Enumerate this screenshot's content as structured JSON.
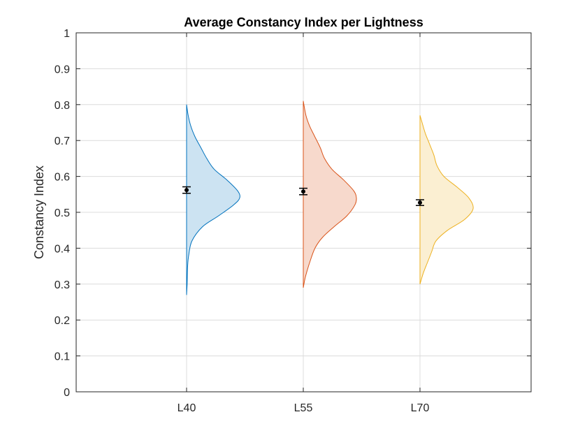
{
  "chart_data": {
    "type": "violin",
    "title": "Average Constancy Index per Lightness",
    "xlabel": "",
    "ylabel": "Constancy Index",
    "ylim": [
      0,
      1
    ],
    "yticks": [
      0,
      0.1,
      0.2,
      0.3,
      0.4,
      0.5,
      0.6,
      0.7,
      0.8,
      0.9,
      1
    ],
    "ytick_labels": [
      "0",
      "0.1",
      "0.2",
      "0.3",
      "0.4",
      "0.5",
      "0.6",
      "0.7",
      "0.8",
      "0.9",
      "1"
    ],
    "grid": true,
    "categories": [
      "L40",
      "L55",
      "L70"
    ],
    "series": [
      {
        "category": "L40",
        "color": "#0072BD",
        "fill": "#CCE3F2",
        "mean": 0.562,
        "error": 0.009,
        "range": [
          0.27,
          0.8
        ],
        "density_profile": [
          [
            0.27,
            0.0
          ],
          [
            0.3,
            0.01
          ],
          [
            0.35,
            0.02
          ],
          [
            0.38,
            0.04
          ],
          [
            0.42,
            0.1
          ],
          [
            0.46,
            0.3
          ],
          [
            0.49,
            0.6
          ],
          [
            0.52,
            0.88
          ],
          [
            0.54,
            1.0
          ],
          [
            0.56,
            0.96
          ],
          [
            0.59,
            0.76
          ],
          [
            0.62,
            0.52
          ],
          [
            0.65,
            0.38
          ],
          [
            0.68,
            0.27
          ],
          [
            0.71,
            0.16
          ],
          [
            0.74,
            0.08
          ],
          [
            0.77,
            0.03
          ],
          [
            0.8,
            0.0
          ]
        ]
      },
      {
        "category": "L55",
        "color": "#D95319",
        "fill": "#F7D9CC",
        "mean": 0.558,
        "error": 0.009,
        "range": [
          0.29,
          0.81
        ],
        "density_profile": [
          [
            0.29,
            0.0
          ],
          [
            0.32,
            0.04
          ],
          [
            0.36,
            0.12
          ],
          [
            0.4,
            0.22
          ],
          [
            0.43,
            0.36
          ],
          [
            0.46,
            0.58
          ],
          [
            0.49,
            0.82
          ],
          [
            0.52,
            0.97
          ],
          [
            0.54,
            1.0
          ],
          [
            0.56,
            0.95
          ],
          [
            0.59,
            0.76
          ],
          [
            0.62,
            0.54
          ],
          [
            0.65,
            0.4
          ],
          [
            0.68,
            0.32
          ],
          [
            0.71,
            0.22
          ],
          [
            0.74,
            0.12
          ],
          [
            0.77,
            0.05
          ],
          [
            0.81,
            0.0
          ]
        ]
      },
      {
        "category": "L70",
        "color": "#EDB120",
        "fill": "#FBEFD2",
        "mean": 0.527,
        "error": 0.008,
        "range": [
          0.3,
          0.77
        ],
        "density_profile": [
          [
            0.3,
            0.0
          ],
          [
            0.33,
            0.06
          ],
          [
            0.36,
            0.14
          ],
          [
            0.39,
            0.22
          ],
          [
            0.42,
            0.3
          ],
          [
            0.45,
            0.52
          ],
          [
            0.48,
            0.84
          ],
          [
            0.51,
            1.0
          ],
          [
            0.54,
            0.92
          ],
          [
            0.57,
            0.7
          ],
          [
            0.6,
            0.45
          ],
          [
            0.63,
            0.32
          ],
          [
            0.66,
            0.26
          ],
          [
            0.69,
            0.18
          ],
          [
            0.72,
            0.1
          ],
          [
            0.75,
            0.04
          ],
          [
            0.77,
            0.0
          ]
        ]
      }
    ]
  }
}
